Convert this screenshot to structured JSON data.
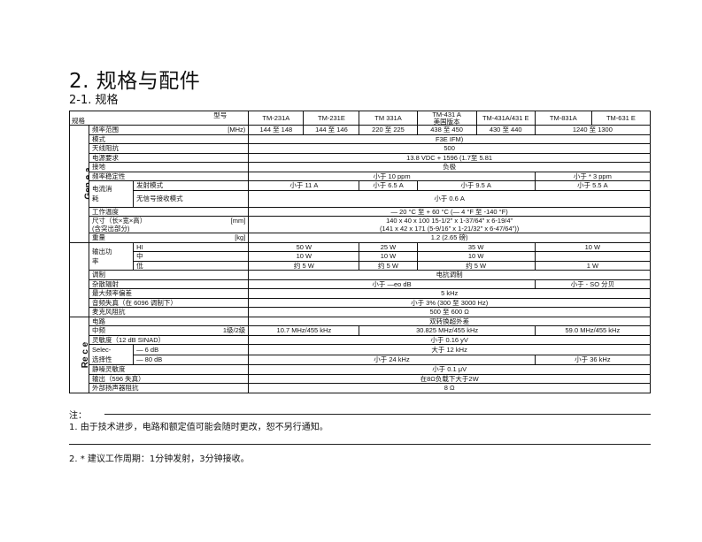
{
  "title": "2. 规格与配件",
  "subtitle": "2-1.  规格",
  "table": {
    "corner_top": "型号",
    "corner_bottom": "规格",
    "models": [
      "TM-231A",
      "TM-231E",
      "TM 331A",
      "TM-431 A\n美国版本",
      "TM-431A/431 E",
      "TM-831A",
      "TM-631 E"
    ],
    "sections": [
      {
        "label": "Gen e a",
        "rows": [
          {
            "label": "频率范围",
            "unit": "[MHz)",
            "cells": [
              {
                "t": "144 至 148",
                "s": 1
              },
              {
                "t": "144 至 146",
                "s": 1
              },
              {
                "t": "220 至 225",
                "s": 1
              },
              {
                "t": "438 至 450",
                "s": 1
              },
              {
                "t": "430 至 440",
                "s": 1
              },
              {
                "t": "1240 至 1300",
                "s": 2
              }
            ]
          },
          {
            "label": "模式",
            "cells": [
              {
                "t": "F3E IFM)",
                "s": 7
              }
            ]
          },
          {
            "label": "天线阻抗",
            "cells": [
              {
                "t": "500",
                "s": 7
              }
            ]
          },
          {
            "label": "电源要求",
            "cells": [
              {
                "t": "13.8 VDC + 1596 (1.7至    5.81",
                "s": 7
              }
            ]
          },
          {
            "label": "接地",
            "cells": [
              {
                "t": "负极",
                "s": 7
              }
            ]
          },
          {
            "label": "频率稳定性",
            "cells": [
              {
                "t": "小于 10 ppm",
                "s": 5
              },
              {
                "t": "小于 * 3 ppm",
                "s": 2
              }
            ]
          },
          {
            "label": "电流消\n耗",
            "subrows": [
              {
                "label": "发射模式",
                "cells": [
                  {
                    "t": "小于 11 A",
                    "s": 2
                  },
                  {
                    "t": "小于 6.5 A",
                    "s": 1
                  },
                  {
                    "t": "小于 9.5 A",
                    "s": 2
                  },
                  {
                    "t": "小于 5.5 A",
                    "s": 2
                  }
                ]
              },
              {
                "label": "无信号接收模式",
                "cells": [
                  {
                    "t": "小于 0.6 A",
                    "s": 7
                  }
                ]
              }
            ]
          },
          {
            "label": "工作温度",
            "cells": [
              {
                "t": "— 20 °C 至 + 60 °C (— 4 °F 至 -140 °F)",
                "s": 7
              }
            ]
          },
          {
            "label": "尺寸（长×宽×高）\n(含突出部分)",
            "unit": "[mm]",
            "cells": [
              {
                "t": "140 x 40 x 100 15-1/2\" x 1-37/64\" x 6-19/4\"\n(141 x 42 x 171 (5-9/16\" x 1-21/32\" x 6-47/64\"))",
                "s": 7
              }
            ]
          },
          {
            "label": "重量",
            "unit": "[kg]",
            "cells": [
              {
                "t": "1.2 (2.65 磅)",
                "s": 7
              }
            ]
          }
        ]
      },
      {
        "label": "Transmi功率",
        "rows": [
          {
            "label": "输出功\n率",
            "subrows": [
              {
                "label": "HI",
                "cells": [
                  {
                    "t": "50 W",
                    "s": 2
                  },
                  {
                    "t": "25 W",
                    "s": 1
                  },
                  {
                    "t": "35 W",
                    "s": 2
                  },
                  {
                    "t": "10 W",
                    "s": 2
                  }
                ]
              },
              {
                "label": "中",
                "cells": [
                  {
                    "t": "10 W",
                    "s": 2
                  },
                  {
                    "t": "10 W",
                    "s": 1
                  },
                  {
                    "t": "10 W",
                    "s": 2
                  },
                  {
                    "t": "",
                    "s": 2
                  }
                ]
              },
              {
                "label": "低",
                "cells": [
                  {
                    "t": "约 5 W",
                    "s": 2
                  },
                  {
                    "t": "约 5 W",
                    "s": 1
                  },
                  {
                    "t": "约 5 W",
                    "s": 2
                  },
                  {
                    "t": "1 W",
                    "s": 2
                  }
                ]
              }
            ]
          },
          {
            "label": "调制",
            "cells": [
              {
                "t": "电抗调制",
                "s": 7
              }
            ]
          },
          {
            "label": "杂散辐射",
            "cells": [
              {
                "t": "小于 —eo dB",
                "s": 5
              },
              {
                "t": "小于 - SO 分贝",
                "s": 2
              }
            ]
          },
          {
            "label": "最大频率偏差",
            "cells": [
              {
                "t": "5 kHz",
                "s": 7
              }
            ]
          },
          {
            "label": "音频失真（在 6096 调制下）",
            "cells": [
              {
                "t": "小于 3%  (300 至 3000 Hz)",
                "s": 7
              }
            ]
          },
          {
            "label": "麦克风阻抗",
            "cells": [
              {
                "t": "500 至 600 Ω",
                "s": 7
              }
            ]
          }
        ]
      },
      {
        "label": "Re c e",
        "rows": [
          {
            "label": "电路",
            "cells": [
              {
                "t": "双转换超外差",
                "s": 7
              }
            ]
          },
          {
            "label": "中频",
            "unit": "1级/2级",
            "cells": [
              {
                "t": "10.7 MHz/455 kHz",
                "s": 2
              },
              {
                "t": "30.825 MHz/455 kHz",
                "s": 3
              },
              {
                "t": "59.0 MHz/455 kHz",
                "s": 2
              }
            ]
          },
          {
            "label": "灵敏度（12 dB SINAD）",
            "cells": [
              {
                "t": "小于 0.16 yV",
                "s": 7
              }
            ]
          },
          {
            "label": "Selec-\n选择性",
            "subrows": [
              {
                "label": "— 6 dB",
                "cells": [
                  {
                    "t": "大于 12 kHz",
                    "s": 7
                  }
                ]
              },
              {
                "label": "— 80 dB",
                "cells": [
                  {
                    "t": "小于 24 kHz",
                    "s": 5
                  },
                  {
                    "t": "小于 36 kHz",
                    "s": 2
                  }
                ]
              }
            ]
          },
          {
            "label": "静噪灵敏度",
            "cells": [
              {
                "t": "小于 0.1 μV",
                "s": 7
              }
            ]
          },
          {
            "label": "输出（596 失真）",
            "cells": [
              {
                "t": "在8Ω负载下大于2W",
                "s": 7
              }
            ]
          },
          {
            "label": "外部扬声器阻抗",
            "cells": [
              {
                "t": "8 Ω",
                "s": 7
              }
            ]
          }
        ]
      }
    ]
  },
  "notes": {
    "heading": "注：",
    "note1": "1. 由于技术进步，电路和额定值可能会随时更改，恕不另行通知。",
    "note2": "2. * 建议工作周期：1分钟发射，3分钟接收。"
  }
}
